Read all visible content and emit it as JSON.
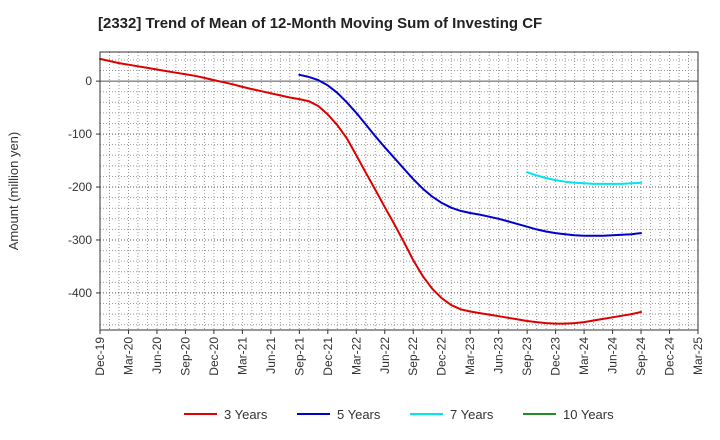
{
  "chart_data": {
    "type": "line",
    "title": "[2332]  Trend of Mean of 12-Month Moving Sum of Investing CF",
    "xlabel": "",
    "ylabel": "Amount (million yen)",
    "x_ticks": [
      "Dec-19",
      "Mar-20",
      "Jun-20",
      "Sep-20",
      "Dec-20",
      "Mar-21",
      "Jun-21",
      "Sep-21",
      "Dec-21",
      "Mar-22",
      "Jun-22",
      "Sep-22",
      "Dec-22",
      "Mar-23",
      "Jun-23",
      "Sep-23",
      "Dec-23",
      "Mar-24",
      "Jun-24",
      "Sep-24",
      "Dec-24",
      "Mar-25"
    ],
    "y_ticks": [
      0,
      -100,
      -200,
      -300,
      -400
    ],
    "ylim": [
      -470,
      55
    ],
    "grid": true,
    "legend_position": "bottom",
    "series": [
      {
        "name": "3 Years",
        "color": "#dd0000",
        "points": [
          [
            "Dec-19",
            42
          ],
          [
            "Jan-20",
            38
          ],
          [
            "Feb-20",
            34
          ],
          [
            "Mar-20",
            31
          ],
          [
            "Apr-20",
            28
          ],
          [
            "May-20",
            25
          ],
          [
            "Jun-20",
            22
          ],
          [
            "Jul-20",
            19
          ],
          [
            "Aug-20",
            16
          ],
          [
            "Sep-20",
            13
          ],
          [
            "Oct-20",
            10
          ],
          [
            "Nov-20",
            6
          ],
          [
            "Dec-20",
            2
          ],
          [
            "Jan-21",
            -2
          ],
          [
            "Feb-21",
            -6
          ],
          [
            "Mar-21",
            -11
          ],
          [
            "Apr-21",
            -15
          ],
          [
            "May-21",
            -19
          ],
          [
            "Jun-21",
            -23
          ],
          [
            "Jul-21",
            -27
          ],
          [
            "Aug-21",
            -31
          ],
          [
            "Sep-21",
            -34
          ],
          [
            "Oct-21",
            -38
          ],
          [
            "Nov-21",
            -47
          ],
          [
            "Dec-21",
            -63
          ],
          [
            "Jan-22",
            -83
          ],
          [
            "Feb-22",
            -108
          ],
          [
            "Mar-22",
            -140
          ],
          [
            "Apr-22",
            -173
          ],
          [
            "May-22",
            -205
          ],
          [
            "Jun-22",
            -238
          ],
          [
            "Jul-22",
            -270
          ],
          [
            "Aug-22",
            -303
          ],
          [
            "Sep-22",
            -338
          ],
          [
            "Oct-22",
            -368
          ],
          [
            "Nov-22",
            -392
          ],
          [
            "Dec-22",
            -410
          ],
          [
            "Jan-23",
            -423
          ],
          [
            "Feb-23",
            -431
          ],
          [
            "Mar-23",
            -435
          ],
          [
            "Apr-23",
            -438
          ],
          [
            "May-23",
            -441
          ],
          [
            "Jun-23",
            -444
          ],
          [
            "Jul-23",
            -447
          ],
          [
            "Aug-23",
            -450
          ],
          [
            "Sep-23",
            -453
          ],
          [
            "Oct-23",
            -455
          ],
          [
            "Nov-23",
            -457
          ],
          [
            "Dec-23",
            -458
          ],
          [
            "Jan-24",
            -458
          ],
          [
            "Feb-24",
            -457
          ],
          [
            "Mar-24",
            -455
          ],
          [
            "Apr-24",
            -452
          ],
          [
            "May-24",
            -449
          ],
          [
            "Jun-24",
            -446
          ],
          [
            "Jul-24",
            -443
          ],
          [
            "Aug-24",
            -440
          ],
          [
            "Sep-24",
            -436
          ]
        ]
      },
      {
        "name": "5 Years",
        "color": "#0000cc",
        "points": [
          [
            "Sep-21",
            12
          ],
          [
            "Oct-21",
            8
          ],
          [
            "Nov-21",
            2
          ],
          [
            "Dec-21",
            -8
          ],
          [
            "Jan-22",
            -22
          ],
          [
            "Feb-22",
            -40
          ],
          [
            "Mar-22",
            -60
          ],
          [
            "Apr-22",
            -82
          ],
          [
            "May-22",
            -104
          ],
          [
            "Jun-22",
            -125
          ],
          [
            "Jul-22",
            -145
          ],
          [
            "Aug-22",
            -165
          ],
          [
            "Sep-22",
            -185
          ],
          [
            "Oct-22",
            -203
          ],
          [
            "Nov-22",
            -218
          ],
          [
            "Dec-22",
            -230
          ],
          [
            "Jan-23",
            -239
          ],
          [
            "Feb-23",
            -245
          ],
          [
            "Mar-23",
            -249
          ],
          [
            "Apr-23",
            -252
          ],
          [
            "May-23",
            -256
          ],
          [
            "Jun-23",
            -260
          ],
          [
            "Jul-23",
            -265
          ],
          [
            "Aug-23",
            -270
          ],
          [
            "Sep-23",
            -275
          ],
          [
            "Oct-23",
            -280
          ],
          [
            "Nov-23",
            -284
          ],
          [
            "Dec-23",
            -287
          ],
          [
            "Jan-24",
            -289
          ],
          [
            "Feb-24",
            -291
          ],
          [
            "Mar-24",
            -292
          ],
          [
            "Apr-24",
            -292
          ],
          [
            "May-24",
            -292
          ],
          [
            "Jun-24",
            -291
          ],
          [
            "Jul-24",
            -290
          ],
          [
            "Aug-24",
            -289
          ],
          [
            "Sep-24",
            -287
          ]
        ]
      },
      {
        "name": "7 Years",
        "color": "#00e5ee",
        "points": [
          [
            "Sep-23",
            -172
          ],
          [
            "Oct-23",
            -178
          ],
          [
            "Nov-23",
            -183
          ],
          [
            "Dec-23",
            -187
          ],
          [
            "Jan-24",
            -190
          ],
          [
            "Feb-24",
            -192
          ],
          [
            "Mar-24",
            -193
          ],
          [
            "Apr-24",
            -194
          ],
          [
            "May-24",
            -194
          ],
          [
            "Jun-24",
            -194
          ],
          [
            "Jul-24",
            -194
          ],
          [
            "Aug-24",
            -193
          ],
          [
            "Sep-24",
            -192
          ]
        ]
      },
      {
        "name": "10 Years",
        "color": "#228b22",
        "points": []
      }
    ]
  }
}
